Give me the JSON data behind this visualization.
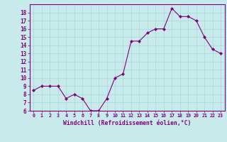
{
  "x": [
    0,
    1,
    2,
    3,
    4,
    5,
    6,
    7,
    8,
    9,
    10,
    11,
    12,
    13,
    14,
    15,
    16,
    17,
    18,
    19,
    20,
    21,
    22,
    23
  ],
  "y": [
    8.5,
    9.0,
    9.0,
    9.0,
    7.5,
    8.0,
    7.5,
    6.0,
    6.0,
    7.5,
    10.0,
    10.5,
    14.5,
    14.5,
    15.5,
    16.0,
    16.0,
    18.5,
    17.5,
    17.5,
    17.0,
    15.0,
    13.5,
    13.0
  ],
  "line_color": "#800080",
  "marker": "D",
  "marker_size": 2,
  "bg_color": "#c8eaea",
  "grid_color": "#a8d8d8",
  "xlabel": "Windchill (Refroidissement éolien,°C)",
  "xlabel_color": "#800080",
  "tick_color": "#800080",
  "ylim": [
    6,
    19
  ],
  "xlim": [
    -0.5,
    23.5
  ],
  "yticks": [
    6,
    7,
    8,
    9,
    10,
    11,
    12,
    13,
    14,
    15,
    16,
    17,
    18
  ],
  "xticks": [
    0,
    1,
    2,
    3,
    4,
    5,
    6,
    7,
    8,
    9,
    10,
    11,
    12,
    13,
    14,
    15,
    16,
    17,
    18,
    19,
    20,
    21,
    22,
    23
  ]
}
